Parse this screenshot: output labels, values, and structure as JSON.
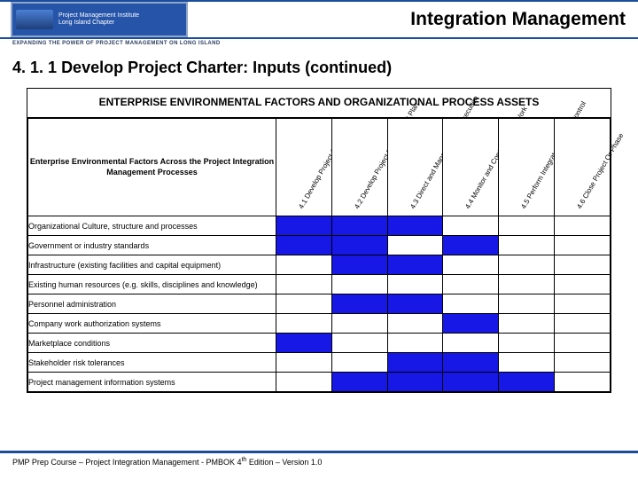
{
  "header": {
    "logo_line1": "Project Management Institute",
    "logo_line2": "Long Island Chapter",
    "tagline": "EXPANDING THE POWER OF PROJECT MANAGEMENT ON LONG ISLAND",
    "title": "Integration Management"
  },
  "section": {
    "number": "4. 1. 1",
    "title": "Develop Project Charter: Inputs",
    "suffix": "(continued)"
  },
  "matrix": {
    "title": "ENTERPRISE ENVIRONMENTAL FACTORS AND ORGANIZATIONAL PROCESS ASSETS",
    "subhead": "Enterprise Environmental Factors Across the Project Integration Management Processes",
    "columns": [
      "4.1 Develop Project Charter",
      "4.2 Develop Project Management Plan",
      "4.3 Direct and Manage Project Execution",
      "4.4 Monitor and Control Project Work",
      "4.5 Perform Integrated Change Control",
      "4.6 Close Project Or Phase"
    ],
    "rows": [
      {
        "label": "Organizational Culture, structure and processes",
        "cells": [
          1,
          1,
          1,
          0,
          0,
          0
        ]
      },
      {
        "label": "Government or industry standards",
        "cells": [
          1,
          1,
          0,
          1,
          0,
          0
        ]
      },
      {
        "label": "Infrastructure (existing facilities and capital equipment)",
        "cells": [
          0,
          1,
          1,
          0,
          0,
          0
        ]
      },
      {
        "label": "Existing human resources (e.g. skills, disciplines and knowledge)",
        "cells": [
          0,
          0,
          0,
          0,
          0,
          0
        ]
      },
      {
        "label": "Personnel administration",
        "cells": [
          0,
          1,
          1,
          0,
          0,
          0
        ]
      },
      {
        "label": "Company work authorization systems",
        "cells": [
          0,
          0,
          0,
          1,
          0,
          0
        ]
      },
      {
        "label": "Marketplace conditions",
        "cells": [
          1,
          0,
          0,
          0,
          0,
          0
        ]
      },
      {
        "label": "Stakeholder risk tolerances",
        "cells": [
          0,
          0,
          1,
          1,
          0,
          0
        ]
      },
      {
        "label": "Project management information systems",
        "cells": [
          0,
          1,
          1,
          1,
          1,
          0
        ]
      }
    ],
    "filled_color": "#1818e6",
    "empty_color": "#ffffff"
  },
  "footer": {
    "text_before": "PMP Prep Course – Project Integration Management - PMBOK 4",
    "sup": "th",
    "text_after": " Edition – Version 1.0"
  }
}
